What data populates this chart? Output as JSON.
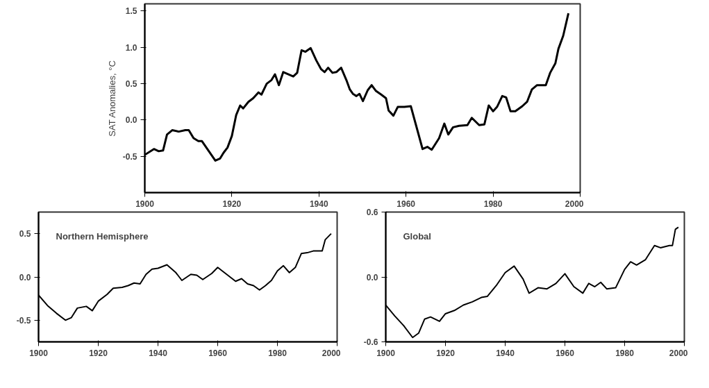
{
  "chart_data": [
    {
      "type": "line",
      "ylabel": "SAT Anomalies, °C",
      "xlim": [
        1900,
        2000
      ],
      "ylim": [
        -1.0,
        1.6
      ],
      "xticks": [
        1900,
        1920,
        1940,
        1960,
        1980,
        2000
      ],
      "yticks": [
        {
          "value": 1.5,
          "label": "1.5"
        },
        {
          "value": 1.0,
          "label": "1.0"
        },
        {
          "value": 0.5,
          "label": "0.5"
        },
        {
          "value": 0.0,
          "label": "0.0"
        },
        {
          "value": -0.5,
          "label": "-0.5"
        }
      ],
      "grid": false,
      "series": [
        {
          "color": "#000000",
          "x": [
            1900,
            1902.1,
            1903.2,
            1904.2,
            1905.1,
            1906.3,
            1907.8,
            1909.3,
            1910.1,
            1911.2,
            1912.3,
            1913.1,
            1916.2,
            1917.3,
            1918.1,
            1919.0,
            1920.0,
            1921.0,
            1921.9,
            1922.6,
            1923.8,
            1924.9,
            1926.1,
            1926.8,
            1928.0,
            1929.1,
            1929.9,
            1930.8,
            1931.8,
            1934.1,
            1935.0,
            1936.0,
            1936.9,
            1938.1,
            1939.4,
            1940.5,
            1941.3,
            1942.1,
            1943.1,
            1944.0,
            1945.1,
            1946.3,
            1947.1,
            1947.8,
            1948.6,
            1949.3,
            1950.1,
            1951.2,
            1952.1,
            1953.1,
            1954.3,
            1955.4,
            1956.0,
            1957.1,
            1958.1,
            1959.6,
            1961.1,
            1963.8,
            1964.9,
            1965.9,
            1967.6,
            1968.8,
            1969.7,
            1970.8,
            1972.2,
            1974.1,
            1975.1,
            1976.8,
            1978.0,
            1979.0,
            1980.0,
            1980.9,
            1982.1,
            1983.0,
            1984.0,
            1985.1,
            1986.7,
            1987.8,
            1988.9,
            1990.1,
            1992.1,
            1993.1,
            1994.3,
            1995.0,
            1996.1,
            1997.3
          ],
          "values": [
            -0.48,
            -0.4,
            -0.43,
            -0.42,
            -0.2,
            -0.14,
            -0.16,
            -0.14,
            -0.14,
            -0.25,
            -0.29,
            -0.29,
            -0.56,
            -0.53,
            -0.45,
            -0.38,
            -0.22,
            0.07,
            0.2,
            0.16,
            0.25,
            0.3,
            0.38,
            0.35,
            0.5,
            0.55,
            0.63,
            0.48,
            0.66,
            0.6,
            0.65,
            0.96,
            0.94,
            0.99,
            0.82,
            0.7,
            0.66,
            0.72,
            0.65,
            0.66,
            0.72,
            0.55,
            0.42,
            0.36,
            0.33,
            0.36,
            0.26,
            0.41,
            0.48,
            0.4,
            0.35,
            0.3,
            0.13,
            0.06,
            0.18,
            0.18,
            0.19,
            -0.4,
            -0.37,
            -0.41,
            -0.25,
            -0.05,
            -0.2,
            -0.1,
            -0.08,
            -0.07,
            0.03,
            -0.07,
            -0.06,
            0.2,
            0.12,
            0.18,
            0.33,
            0.31,
            0.12,
            0.12,
            0.19,
            0.25,
            0.42,
            0.48,
            0.48,
            0.65,
            0.78,
            0.98,
            1.16,
            1.47
          ]
        }
      ]
    },
    {
      "type": "line",
      "title": "Northern Hemisphere",
      "xlim": [
        1900,
        2000
      ],
      "ylim": [
        -0.75,
        0.75
      ],
      "xticks": [
        1900,
        1920,
        1940,
        1960,
        1980,
        2000
      ],
      "yticks": [
        {
          "value": 0.5,
          "label": "0.5"
        },
        {
          "value": 0.0,
          "label": "0.0"
        },
        {
          "value": -0.5,
          "label": "-0.5"
        }
      ],
      "grid": false,
      "series": [
        {
          "color": "#000000",
          "x": [
            1900,
            1903,
            1906,
            1909,
            1911,
            1913,
            1916,
            1918,
            1920,
            1923,
            1925,
            1928,
            1930,
            1932,
            1934,
            1936,
            1938,
            1940,
            1943,
            1946,
            1948,
            1951,
            1953,
            1955,
            1958,
            1960,
            1963,
            1966,
            1968,
            1970,
            1972,
            1974,
            1976,
            1978,
            1980,
            1982,
            1984,
            1986,
            1988,
            1990,
            1992,
            1995,
            1996,
            1998
          ],
          "values": [
            -0.21,
            -0.33,
            -0.42,
            -0.5,
            -0.47,
            -0.36,
            -0.34,
            -0.39,
            -0.28,
            -0.2,
            -0.13,
            -0.12,
            -0.1,
            -0.07,
            -0.08,
            0.03,
            0.09,
            0.1,
            0.14,
            0.05,
            -0.04,
            0.03,
            0.02,
            -0.03,
            0.04,
            0.11,
            0.03,
            -0.05,
            -0.02,
            -0.08,
            -0.1,
            -0.15,
            -0.1,
            -0.04,
            0.07,
            0.13,
            0.05,
            0.11,
            0.27,
            0.28,
            0.3,
            0.3,
            0.43,
            0.5
          ]
        }
      ]
    },
    {
      "type": "line",
      "title": "Global",
      "xlim": [
        1900,
        2000
      ],
      "ylim": [
        -0.6,
        0.6
      ],
      "xticks": [
        1900,
        1920,
        1940,
        1960,
        1980,
        2000
      ],
      "yticks": [
        {
          "value": 0.6,
          "label": "0.6"
        },
        {
          "value": 0.0,
          "label": "0.0"
        },
        {
          "value": -0.6,
          "label": "-0.6"
        }
      ],
      "grid": false,
      "series": [
        {
          "color": "#000000",
          "x": [
            1900,
            1903,
            1906,
            1909,
            1911,
            1913,
            1915,
            1918,
            1920,
            1923,
            1926,
            1929,
            1932,
            1934,
            1937,
            1940,
            1943,
            1946,
            1948,
            1951,
            1954,
            1957,
            1960,
            1963,
            1966,
            1968,
            1970,
            1972,
            1974,
            1977,
            1980,
            1982,
            1984,
            1987,
            1990,
            1992,
            1995,
            1996,
            1997,
            1998
          ],
          "values": [
            -0.26,
            -0.36,
            -0.45,
            -0.56,
            -0.52,
            -0.39,
            -0.37,
            -0.41,
            -0.34,
            -0.31,
            -0.26,
            -0.23,
            -0.19,
            -0.18,
            -0.08,
            0.04,
            0.1,
            -0.02,
            -0.15,
            -0.1,
            -0.11,
            -0.06,
            0.03,
            -0.09,
            -0.15,
            -0.06,
            -0.09,
            -0.05,
            -0.11,
            -0.1,
            0.07,
            0.14,
            0.11,
            0.16,
            0.29,
            0.27,
            0.29,
            0.29,
            0.44,
            0.46
          ]
        }
      ]
    }
  ]
}
